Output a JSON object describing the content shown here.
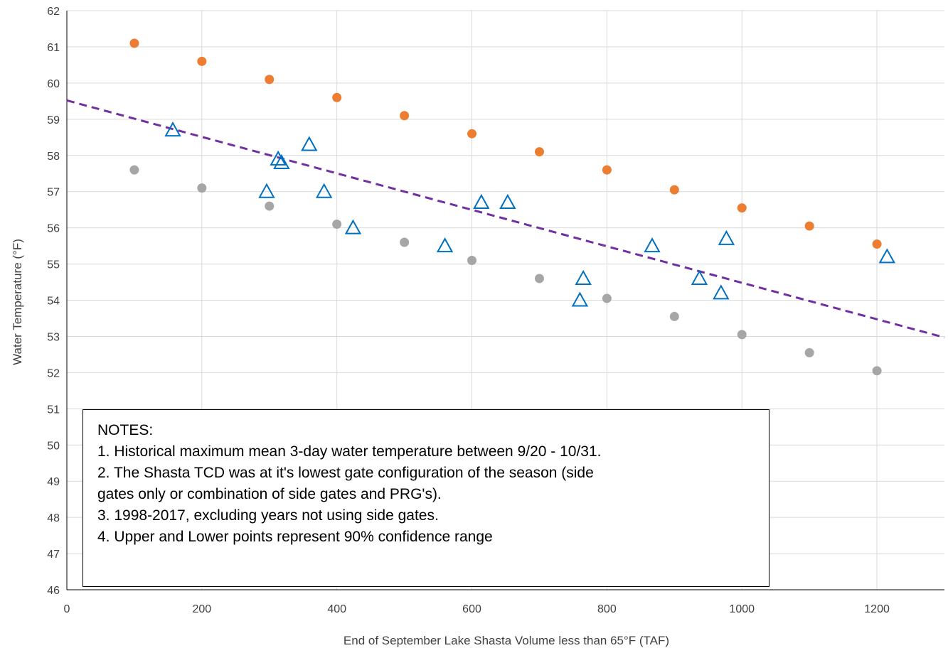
{
  "chart_data": {
    "type": "scatter",
    "xlabel": "End of September Lake Shasta Volume less than 65°F (TAF)",
    "ylabel": "Water Temperature (°F)",
    "xlim": [
      0,
      1300
    ],
    "ylim": [
      46,
      62
    ],
    "x_ticks": [
      0,
      200,
      400,
      600,
      800,
      1000,
      1200
    ],
    "y_ticks": [
      46,
      47,
      48,
      49,
      50,
      51,
      52,
      53,
      54,
      55,
      56,
      57,
      58,
      59,
      60,
      61,
      62
    ],
    "grid": true,
    "series": [
      {
        "marker": "circle",
        "color": "#ED7D31",
        "points": [
          [
            100,
            61.1
          ],
          [
            200,
            60.6
          ],
          [
            300,
            60.1
          ],
          [
            400,
            59.6
          ],
          [
            500,
            59.1
          ],
          [
            600,
            58.6
          ],
          [
            700,
            58.1
          ],
          [
            800,
            57.6
          ],
          [
            900,
            57.05
          ],
          [
            1000,
            56.55
          ],
          [
            1100,
            56.05
          ],
          [
            1200,
            55.55
          ]
        ]
      },
      {
        "marker": "circle",
        "color": "#A6A6A6",
        "points": [
          [
            100,
            57.6
          ],
          [
            200,
            57.1
          ],
          [
            300,
            56.6
          ],
          [
            400,
            56.1
          ],
          [
            500,
            55.6
          ],
          [
            600,
            55.1
          ],
          [
            700,
            54.6
          ],
          [
            800,
            54.05
          ],
          [
            900,
            53.55
          ],
          [
            1000,
            53.05
          ],
          [
            1100,
            52.55
          ],
          [
            1200,
            52.05
          ]
        ]
      },
      {
        "marker": "triangle-open",
        "color": "#0070C0",
        "points": [
          [
            157,
            58.7
          ],
          [
            313,
            57.9
          ],
          [
            318,
            57.8
          ],
          [
            296,
            57.0
          ],
          [
            359,
            58.3
          ],
          [
            381,
            57.0
          ],
          [
            424,
            56.0
          ],
          [
            560,
            55.5
          ],
          [
            614,
            56.7
          ],
          [
            653,
            56.7
          ],
          [
            760,
            54.0
          ],
          [
            765,
            54.6
          ],
          [
            867,
            55.5
          ],
          [
            937,
            54.6
          ],
          [
            969,
            54.2
          ],
          [
            977,
            55.7
          ],
          [
            1215,
            55.2
          ]
        ]
      }
    ],
    "trendline": {
      "style": "dashed",
      "color": "#7030A0",
      "points": [
        [
          0,
          59.52
        ],
        [
          1300,
          52.97
        ]
      ]
    }
  },
  "notes": {
    "heading": "NOTES:",
    "lines": [
      "1. Historical maximum mean 3-day water temperature between 9/20 - 10/31.",
      "2. The Shasta TCD was at it's lowest gate configuration of the season (side",
      "gates only or combination of side gates and PRG's).",
      "3. 1998-2017, excluding years not using side gates.",
      "4. Upper and Lower points represent 90% confidence range"
    ]
  }
}
